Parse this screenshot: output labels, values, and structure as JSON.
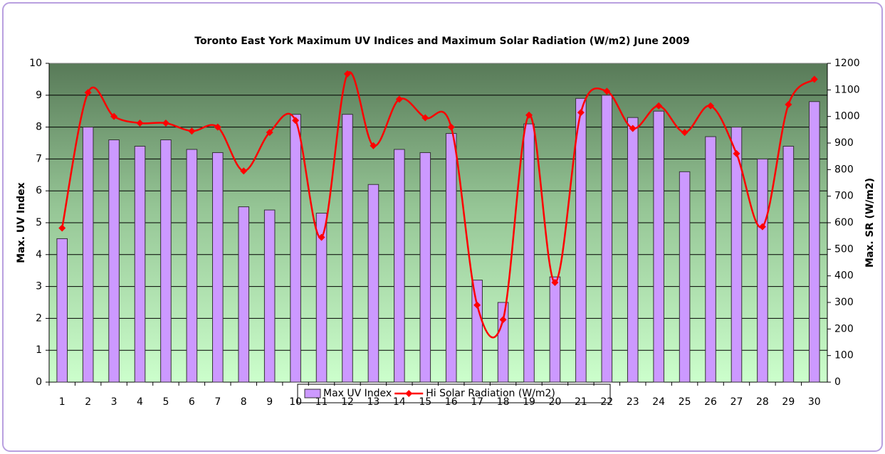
{
  "chart_data": {
    "type": "bar-line",
    "title": "Toronto East York Maximum UV Indices and Maximum Solar Radiation (W/m2) June 2009",
    "y_label": "Max. UV Index",
    "y2_label": "Max. SR (W/m2)",
    "categories": [
      "1",
      "2",
      "3",
      "4",
      "5",
      "6",
      "7",
      "8",
      "9",
      "10",
      "11",
      "12",
      "13",
      "14",
      "15",
      "16",
      "17",
      "18",
      "19",
      "20",
      "21",
      "22",
      "23",
      "24",
      "25",
      "26",
      "27",
      "28",
      "29",
      "30"
    ],
    "series": [
      {
        "name": "Max UV Index",
        "type": "bar",
        "color": "#cc99ff",
        "values": [
          4.5,
          8.0,
          7.6,
          7.4,
          7.6,
          7.3,
          7.2,
          5.5,
          5.4,
          8.4,
          5.3,
          8.4,
          6.2,
          7.3,
          7.2,
          7.8,
          3.2,
          2.5,
          8.1,
          3.3,
          8.9,
          9.0,
          8.3,
          8.5,
          6.6,
          7.7,
          8.0,
          7.0,
          7.4,
          8.8
        ]
      },
      {
        "name": "Hi Solar Radiation (W/m2)",
        "type": "line",
        "axis": "y2",
        "color": "#ff0000",
        "values": [
          580,
          1090,
          1000,
          975,
          975,
          945,
          960,
          795,
          940,
          985,
          545,
          1160,
          890,
          1065,
          995,
          960,
          290,
          235,
          1005,
          375,
          1015,
          1095,
          955,
          1040,
          940,
          1040,
          860,
          585,
          1045,
          1140
        ]
      }
    ],
    "ylim": [
      0,
      10
    ],
    "yticks": [
      0,
      1,
      2,
      3,
      4,
      5,
      6,
      7,
      8,
      9,
      10
    ],
    "y2lim": [
      0,
      1200
    ],
    "y2ticks": [
      0,
      100,
      200,
      300,
      400,
      500,
      600,
      700,
      800,
      900,
      1000,
      1100,
      1200
    ],
    "grid": true,
    "legend": "bottom"
  }
}
